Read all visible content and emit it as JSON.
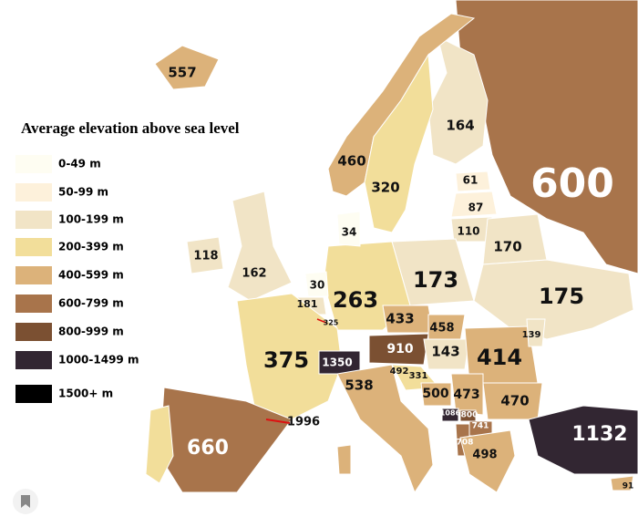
{
  "legend": {
    "title": "Average elevation above sea level",
    "items": [
      {
        "label": "0-49 m",
        "color": "#fefdf2"
      },
      {
        "label": "50-99 m",
        "color": "#fdf1db"
      },
      {
        "label": "100-199 m",
        "color": "#f1e4c6"
      },
      {
        "label": "200-399 m",
        "color": "#f2de9a"
      },
      {
        "label": "400-599 m",
        "color": "#dcb27a"
      },
      {
        "label": "600-799 m",
        "color": "#a8744b"
      },
      {
        "label": "800-999 m",
        "color": "#7b5032"
      },
      {
        "label": "1000-1499 m",
        "color": "#322632"
      },
      {
        "label": "1500+ m",
        "color": "#000000"
      }
    ]
  },
  "elevations": [
    557,
    164,
    460,
    320,
    600,
    61,
    87,
    110,
    34,
    170,
    118,
    162,
    30,
    181,
    263,
    173,
    175,
    325,
    433,
    458,
    139,
    375,
    1350,
    910,
    143,
    414,
    492,
    331,
    538,
    500,
    473,
    470,
    1086,
    800,
    741,
    708,
    498,
    1132,
    660,
    1996,
    91
  ]
}
